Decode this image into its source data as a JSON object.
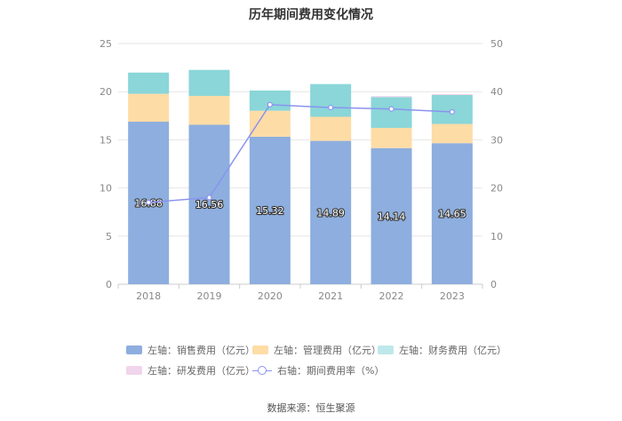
{
  "chart_data": {
    "type": "bar",
    "title": "历年期间费用变化情况",
    "categories": [
      "2018",
      "2019",
      "2020",
      "2021",
      "2022",
      "2023"
    ],
    "series": [
      {
        "name": "左轴：销售费用（亿元）",
        "axis": "left",
        "type": "bar",
        "color": "#8daede",
        "values": [
          16.88,
          16.56,
          15.32,
          14.89,
          14.14,
          14.65
        ]
      },
      {
        "name": "左轴：管理费用（亿元）",
        "axis": "left",
        "type": "bar",
        "color": "#fedca6",
        "values": [
          2.9,
          3.0,
          2.7,
          2.5,
          2.1,
          2.0
        ]
      },
      {
        "name": "左轴：财务费用（亿元）",
        "axis": "left",
        "type": "bar",
        "color": "#8ad6d8",
        "values": [
          2.2,
          2.7,
          2.1,
          3.4,
          3.2,
          3.0
        ]
      },
      {
        "name": "左轴：研发费用（亿元）",
        "axis": "left",
        "type": "bar",
        "color": "#f0d5ec",
        "values": [
          0,
          0,
          0,
          0,
          0.1,
          0.1
        ]
      },
      {
        "name": "右轴：期间费用率（%）",
        "axis": "right",
        "type": "line",
        "color": "#8b93f0",
        "values": [
          17.0,
          18.0,
          37.3,
          36.7,
          36.4,
          35.8
        ]
      }
    ],
    "data_labels": [
      "16.88",
      "16.56",
      "15.32",
      "14.89",
      "14.14",
      "14.65"
    ],
    "ylim_left": [
      0,
      25
    ],
    "ylim_right": [
      0,
      50
    ],
    "yticks_left": [
      "0",
      "5",
      "10",
      "15",
      "20",
      "25"
    ],
    "yticks_right": [
      "0",
      "10",
      "20",
      "30",
      "40",
      "50"
    ],
    "grid": true,
    "legend_position": "bottom"
  },
  "legend": [
    {
      "label": "左轴：销售费用（亿元）",
      "color": "#8daede"
    },
    {
      "label": "左轴：管理费用（亿元）",
      "color": "#fedca6"
    },
    {
      "label": "左轴：财务费用（亿元）",
      "color": "#8ad6d8"
    },
    {
      "label": "左轴：研发费用（亿元）",
      "color": "#f0d5ec"
    },
    {
      "label": "右轴：期间费用率（%）",
      "color": "#8b93f0"
    }
  ],
  "source": "数据来源：恒生聚源"
}
